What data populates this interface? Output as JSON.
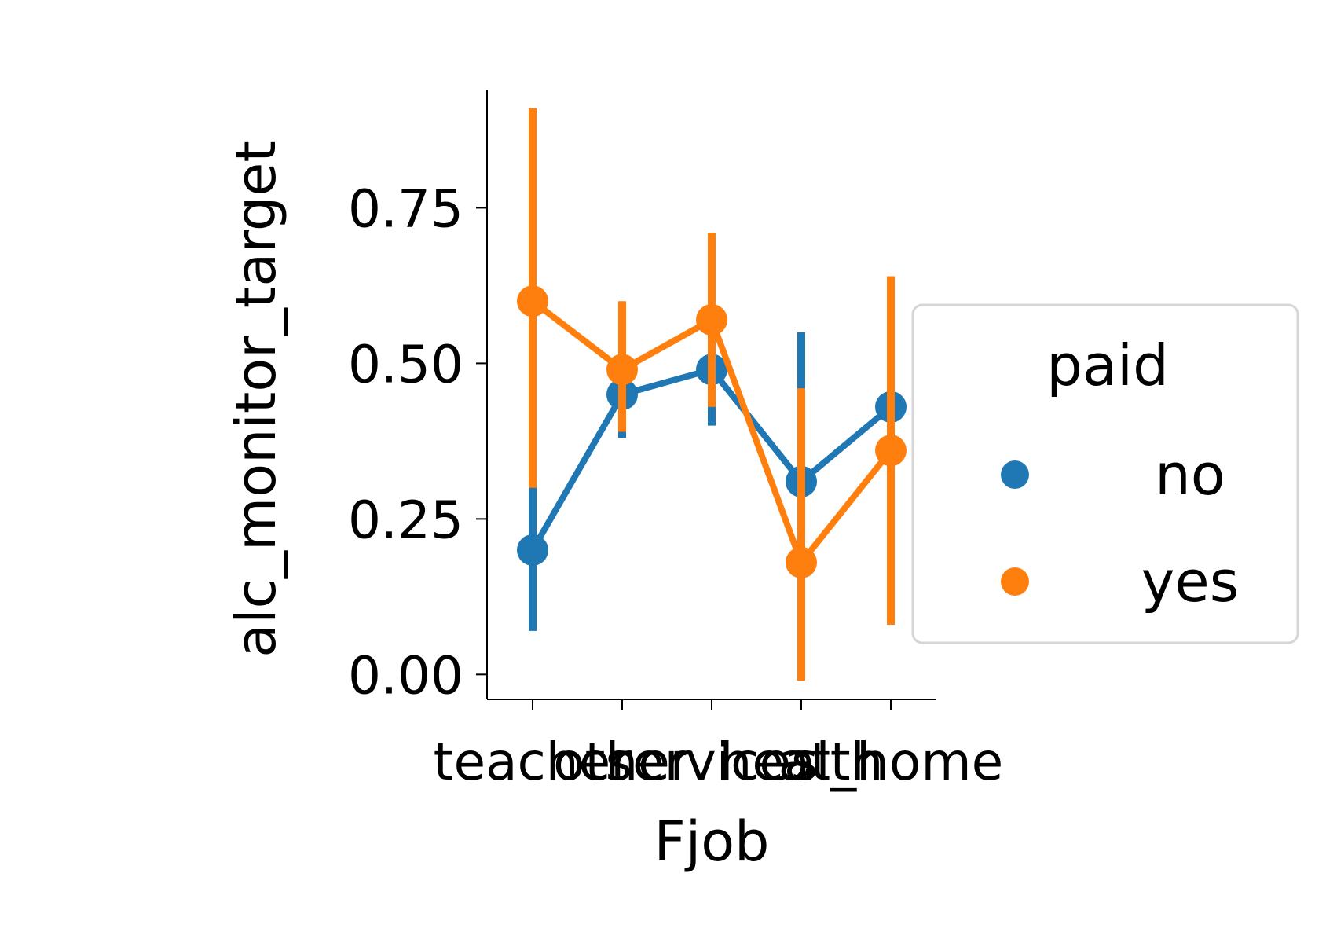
{
  "chart_data": {
    "type": "point",
    "xlabel": "Fjob",
    "ylabel": "alc_monitor_target",
    "categories": [
      "teacher",
      "other",
      "services",
      "health",
      "at_home"
    ],
    "ylim": [
      -0.04,
      0.94
    ],
    "yticks": [
      0.0,
      0.25,
      0.5,
      0.75
    ],
    "ytick_labels": [
      "0.00",
      "0.25",
      "0.50",
      "0.75"
    ],
    "grid": false,
    "legend": {
      "title": "paid",
      "placement": "center-right",
      "entries": [
        "no",
        "yes"
      ]
    },
    "series": [
      {
        "name": "no",
        "color": "#1f77b4",
        "values": [
          0.2,
          0.45,
          0.49,
          0.31,
          0.43
        ],
        "ci_low": [
          0.07,
          0.38,
          0.4,
          0.1,
          0.25
        ],
        "ci_high": [
          0.37,
          0.52,
          0.59,
          0.55,
          0.62
        ]
      },
      {
        "name": "yes",
        "color": "#ff7f0e",
        "values": [
          0.6,
          0.49,
          0.57,
          0.18,
          0.36
        ],
        "ci_low": [
          0.3,
          0.39,
          0.43,
          -0.01,
          0.08
        ],
        "ci_high": [
          0.91,
          0.6,
          0.71,
          0.46,
          0.64
        ]
      }
    ]
  }
}
